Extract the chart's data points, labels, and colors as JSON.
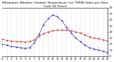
{
  "title": "Milwaukee Weather Outdoor Temperature (vs) THSW Index per Hour (Last 24 Hours)",
  "hours": [
    0,
    1,
    2,
    3,
    4,
    5,
    6,
    7,
    8,
    9,
    10,
    11,
    12,
    13,
    14,
    15,
    16,
    17,
    18,
    19,
    20,
    21,
    22,
    23
  ],
  "temp": [
    28,
    26,
    25,
    24,
    24,
    23,
    24,
    27,
    33,
    37,
    40,
    42,
    43,
    43,
    43,
    42,
    40,
    38,
    35,
    32,
    30,
    29,
    27,
    25
  ],
  "thsw": [
    20,
    18,
    16,
    15,
    14,
    13,
    14,
    22,
    36,
    52,
    62,
    68,
    65,
    58,
    48,
    38,
    30,
    24,
    18,
    14,
    12,
    10,
    8,
    6
  ],
  "temp_color": "#cc0000",
  "thsw_color": "#0000cc",
  "grid_color": "#888888",
  "bg_color": "#ffffff",
  "ylim_min": 0,
  "ylim_max": 80,
  "ytick_labels": [
    "80",
    "70",
    "60",
    "50",
    "40",
    "30",
    "20",
    "10",
    "0"
  ],
  "ytick_vals": [
    80,
    70,
    60,
    50,
    40,
    30,
    20,
    10,
    0
  ],
  "title_fontsize": 3.2,
  "tick_fontsize": 2.5,
  "line_width": 0.6,
  "marker_size": 0.8
}
